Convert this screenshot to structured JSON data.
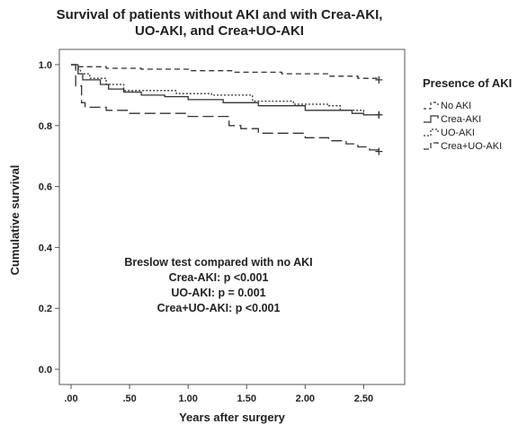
{
  "chart_data": {
    "type": "line",
    "title_lines": [
      "Survival of patients without AKI and with Crea-AKI,",
      "UO-AKI, and Crea+UO-AKI"
    ],
    "xlabel": "Years after surgery",
    "ylabel": "Cumulative survival",
    "xlim": [
      -0.1,
      2.85
    ],
    "ylim": [
      -0.05,
      1.05
    ],
    "x_ticks": [
      {
        "value": 0.0,
        "label": ".00"
      },
      {
        "value": 0.5,
        "label": ".50"
      },
      {
        "value": 1.0,
        "label": "1.00"
      },
      {
        "value": 1.5,
        "label": "1.50"
      },
      {
        "value": 2.0,
        "label": "2.00"
      },
      {
        "value": 2.5,
        "label": "2.50"
      }
    ],
    "y_ticks": [
      {
        "value": 0.0,
        "label": "0.0"
      },
      {
        "value": 0.2,
        "label": "0.2"
      },
      {
        "value": 0.4,
        "label": "0.4"
      },
      {
        "value": 0.6,
        "label": "0.6"
      },
      {
        "value": 0.8,
        "label": "0.8"
      },
      {
        "value": 1.0,
        "label": "1.0"
      }
    ],
    "legend": {
      "title": "Presence of AKI",
      "position": "right"
    },
    "series": [
      {
        "name": "No AKI",
        "dash": "6,4",
        "color": "#333333",
        "steps": [
          [
            0,
            1.0
          ],
          [
            0.05,
            0.993
          ],
          [
            0.3,
            0.988
          ],
          [
            0.6,
            0.985
          ],
          [
            1.0,
            0.98
          ],
          [
            1.4,
            0.975
          ],
          [
            1.8,
            0.97
          ],
          [
            2.2,
            0.962
          ],
          [
            2.45,
            0.955
          ],
          [
            2.63,
            0.95
          ]
        ],
        "censor": [
          [
            2.63,
            0.95
          ]
        ]
      },
      {
        "name": "Crea-AKI",
        "dash": "",
        "color": "#333333",
        "steps": [
          [
            0,
            1.0
          ],
          [
            0.06,
            0.97
          ],
          [
            0.1,
            0.95
          ],
          [
            0.25,
            0.935
          ],
          [
            0.32,
            0.92
          ],
          [
            0.45,
            0.91
          ],
          [
            0.6,
            0.9
          ],
          [
            0.8,
            0.895
          ],
          [
            1.0,
            0.885
          ],
          [
            1.3,
            0.875
          ],
          [
            1.6,
            0.865
          ],
          [
            2.0,
            0.85
          ],
          [
            2.4,
            0.84
          ],
          [
            2.5,
            0.835
          ],
          [
            2.63,
            0.835
          ]
        ],
        "censor": [
          [
            2.63,
            0.835
          ]
        ]
      },
      {
        "name": "UO-AKI",
        "dash": "2,2",
        "color": "#333333",
        "steps": [
          [
            0,
            1.0
          ],
          [
            0.04,
            0.985
          ],
          [
            0.08,
            0.97
          ],
          [
            0.16,
            0.955
          ],
          [
            0.3,
            0.935
          ],
          [
            0.45,
            0.915
          ],
          [
            0.9,
            0.905
          ],
          [
            1.2,
            0.9
          ],
          [
            1.55,
            0.88
          ],
          [
            1.9,
            0.87
          ],
          [
            2.2,
            0.865
          ],
          [
            2.3,
            0.85
          ],
          [
            2.5,
            0.835
          ],
          [
            2.63,
            0.835
          ]
        ],
        "censor": [
          [
            2.63,
            0.835
          ]
        ]
      },
      {
        "name": "Crea+UO-AKI",
        "dash": "12,5",
        "color": "#333333",
        "steps": [
          [
            0,
            1.0
          ],
          [
            0.04,
            0.93
          ],
          [
            0.09,
            0.875
          ],
          [
            0.12,
            0.86
          ],
          [
            0.3,
            0.85
          ],
          [
            0.5,
            0.84
          ],
          [
            1.0,
            0.83
          ],
          [
            1.35,
            0.8
          ],
          [
            1.45,
            0.79
          ],
          [
            1.6,
            0.775
          ],
          [
            2.0,
            0.76
          ],
          [
            2.2,
            0.75
          ],
          [
            2.35,
            0.74
          ],
          [
            2.45,
            0.73
          ],
          [
            2.55,
            0.72
          ],
          [
            2.63,
            0.715
          ]
        ],
        "censor": [
          [
            2.63,
            0.715
          ]
        ]
      }
    ],
    "annotation_lines": [
      "Breslow test compared with no AKI",
      "Crea-AKI: p <0.001",
      "UO-AKI: p = 0.001",
      "Crea+UO-AKI: p <0.001"
    ]
  }
}
